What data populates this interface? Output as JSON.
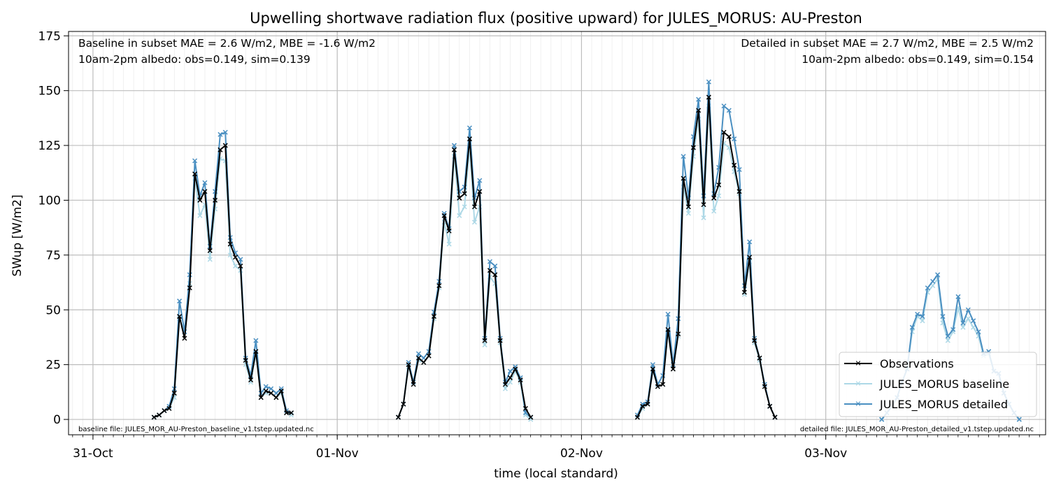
{
  "chart_data": {
    "type": "line",
    "title": "Upwelling shortwave radiation flux (positive upward) for JULES_MORUS: AU-Preston",
    "xlabel": "time (local standard)",
    "ylabel": "SWup [W/m2]",
    "ylim": [
      -7,
      177
    ],
    "yticks": [
      0,
      25,
      50,
      75,
      100,
      125,
      150,
      175
    ],
    "xlim": [
      -0.1,
      3.9
    ],
    "xticks": [
      {
        "pos": 0,
        "label": "31-Oct"
      },
      {
        "pos": 1,
        "label": "01-Nov"
      },
      {
        "pos": 2,
        "label": "02-Nov"
      },
      {
        "pos": 3,
        "label": "03-Nov"
      }
    ],
    "grid": true,
    "legend_position": "lower right",
    "annotations": {
      "top_left": [
        "Baseline in subset MAE = 2.6 W/m2, MBE = -1.6 W/m2",
        "10am-2pm albedo: obs=0.149, sim=0.139"
      ],
      "top_right": [
        "Detailed in subset MAE = 2.7 W/m2, MBE = 2.5 W/m2",
        "10am-2pm albedo: obs=0.149, sim=0.154"
      ],
      "bottom_left": "baseline file: JULES_MOR_AU-Preston_baseline_v1.tstep.updated.nc",
      "bottom_right": "detailed file: JULES_MOR_AU-Preston_detailed_v1.tstep.updated.nc"
    },
    "series": [
      {
        "name": "Observations",
        "color": "#000000",
        "segments": [
          {
            "x": [
              0.25,
              0.271,
              0.292,
              0.312,
              0.333,
              0.354,
              0.375,
              0.396,
              0.417,
              0.438,
              0.458,
              0.479,
              0.5,
              0.521,
              0.542,
              0.562,
              0.583,
              0.604,
              0.625,
              0.646,
              0.667,
              0.688,
              0.708,
              0.729,
              0.75,
              0.771,
              0.792,
              0.812
            ],
            "y": [
              1,
              2,
              4,
              5,
              12,
              47,
              37,
              60,
              112,
              100,
              104,
              77,
              100,
              123,
              125,
              80,
              74,
              70,
              27,
              18,
              31,
              10,
              13,
              12,
              10,
              13,
              3,
              3
            ]
          },
          {
            "x": [
              1.25,
              1.271,
              1.292,
              1.312,
              1.333,
              1.354,
              1.375,
              1.396,
              1.417,
              1.438,
              1.458,
              1.479,
              1.5,
              1.521,
              1.542,
              1.562,
              1.583,
              1.604,
              1.625,
              1.646,
              1.667,
              1.688,
              1.708,
              1.729,
              1.75,
              1.771,
              1.792
            ],
            "y": [
              1,
              7,
              25,
              16,
              28,
              26,
              29,
              47,
              61,
              93,
              86,
              123,
              101,
              103,
              128,
              97,
              104,
              36,
              68,
              66,
              36,
              16,
              19,
              23,
              18,
              5,
              1
            ]
          },
          {
            "x": [
              2.229,
              2.25,
              2.271,
              2.292,
              2.312,
              2.333,
              2.354,
              2.375,
              2.396,
              2.417,
              2.438,
              2.458,
              2.479,
              2.5,
              2.521,
              2.542,
              2.562,
              2.583,
              2.604,
              2.625,
              2.646,
              2.667,
              2.688,
              2.708,
              2.729,
              2.75,
              2.771,
              2.792
            ],
            "y": [
              1,
              6,
              7,
              23,
              15,
              16,
              41,
              23,
              39,
              110,
              97,
              124,
              141,
              98,
              147,
              101,
              107,
              131,
              129,
              116,
              104,
              58,
              74,
              36,
              28,
              15,
              6,
              1
            ]
          }
        ]
      },
      {
        "name": "JULES_MORUS baseline",
        "color": "#add8e6",
        "segments": [
          {
            "x": [
              0.25,
              0.271,
              0.292,
              0.312,
              0.333,
              0.354,
              0.375,
              0.396,
              0.417,
              0.438,
              0.458,
              0.479,
              0.5,
              0.521,
              0.542,
              0.562,
              0.583,
              0.604,
              0.625,
              0.646,
              0.667,
              0.688,
              0.708,
              0.729,
              0.75,
              0.771,
              0.792,
              0.812
            ],
            "y": [
              1,
              2,
              4,
              5,
              10,
              46,
              40,
              62,
              110,
              93,
              98,
              73,
              96,
              119,
              118,
              75,
              70,
              68,
              25,
              17,
              30,
              10,
              12,
              12,
              10,
              12,
              3,
              2
            ]
          },
          {
            "x": [
              1.25,
              1.271,
              1.292,
              1.312,
              1.333,
              1.354,
              1.375,
              1.396,
              1.417,
              1.438,
              1.458,
              1.479,
              1.5,
              1.521,
              1.542,
              1.562,
              1.583,
              1.604,
              1.625,
              1.646,
              1.667,
              1.688,
              1.708,
              1.729,
              1.75,
              1.771,
              1.792
            ],
            "y": [
              1,
              7,
              24,
              16,
              27,
              26,
              29,
              46,
              60,
              90,
              80,
              120,
              93,
              97,
              124,
              90,
              97,
              34,
              65,
              62,
              35,
              14,
              17,
              22,
              17,
              2,
              0
            ]
          },
          {
            "x": [
              2.229,
              2.25,
              2.271,
              2.292,
              2.312,
              2.333,
              2.354,
              2.375,
              2.396,
              2.417,
              2.438,
              2.458,
              2.479,
              2.5,
              2.521,
              2.542,
              2.562,
              2.583,
              2.604,
              2.625,
              2.646,
              2.667,
              2.688,
              2.708,
              2.729,
              2.75,
              2.771,
              2.792
            ],
            "y": [
              1,
              5,
              7,
              22,
              15,
              16,
              40,
              23,
              38,
              106,
              94,
              120,
              137,
              92,
              143,
              95,
              102,
              126,
              124,
              113,
              103,
              57,
              72,
              35,
              27,
              15,
              6,
              1
            ]
          },
          {
            "x": [
              3.229,
              3.25,
              3.271,
              3.292,
              3.312,
              3.333,
              3.354,
              3.375,
              3.396,
              3.417,
              3.438,
              3.458,
              3.479,
              3.5,
              3.521,
              3.542,
              3.562,
              3.583,
              3.604,
              3.625,
              3.646,
              3.667,
              3.688,
              3.708,
              3.729,
              3.75,
              3.771,
              3.792
            ],
            "y": [
              0,
              3,
              6,
              10,
              17,
              23,
              40,
              47,
              45,
              58,
              61,
              64,
              44,
              36,
              40,
              51,
              42,
              46,
              42,
              38,
              29,
              30,
              22,
              21,
              12,
              7,
              3,
              0
            ]
          }
        ]
      },
      {
        "name": "JULES_MORUS detailed",
        "color": "#4a8fc1",
        "segments": [
          {
            "x": [
              0.25,
              0.271,
              0.292,
              0.312,
              0.333,
              0.354,
              0.375,
              0.396,
              0.417,
              0.438,
              0.458,
              0.479,
              0.5,
              0.521,
              0.542,
              0.562,
              0.583,
              0.604,
              0.625,
              0.646,
              0.667,
              0.688,
              0.708,
              0.729,
              0.75,
              0.771,
              0.792,
              0.812
            ],
            "y": [
              1,
              2,
              4,
              6,
              14,
              54,
              40,
              66,
              118,
              102,
              108,
              79,
              104,
              130,
              131,
              83,
              76,
              73,
              28,
              20,
              36,
              12,
              15,
              14,
              12,
              14,
              4,
              3
            ]
          },
          {
            "x": [
              1.25,
              1.271,
              1.292,
              1.312,
              1.333,
              1.354,
              1.375,
              1.396,
              1.417,
              1.438,
              1.458,
              1.479,
              1.5,
              1.521,
              1.542,
              1.562,
              1.583,
              1.604,
              1.625,
              1.646,
              1.667,
              1.688,
              1.708,
              1.729,
              1.75,
              1.771,
              1.792
            ],
            "y": [
              1,
              7,
              26,
              17,
              30,
              28,
              31,
              49,
              63,
              94,
              87,
              125,
              104,
              106,
              133,
              101,
              109,
              37,
              72,
              70,
              37,
              17,
              22,
              24,
              19,
              3,
              1
            ]
          },
          {
            "x": [
              2.229,
              2.25,
              2.271,
              2.292,
              2.312,
              2.333,
              2.354,
              2.375,
              2.396,
              2.417,
              2.438,
              2.458,
              2.479,
              2.5,
              2.521,
              2.542,
              2.562,
              2.583,
              2.604,
              2.625,
              2.646,
              2.667,
              2.688,
              2.708,
              2.729,
              2.75,
              2.771,
              2.792
            ],
            "y": [
              2,
              7,
              8,
              25,
              16,
              20,
              48,
              25,
              46,
              120,
              101,
              129,
              146,
              102,
              154,
              103,
              115,
              143,
              141,
              128,
              114,
              61,
              81,
              37,
              28,
              16,
              6,
              1
            ]
          },
          {
            "x": [
              3.229,
              3.25,
              3.271,
              3.292,
              3.312,
              3.333,
              3.354,
              3.375,
              3.396,
              3.417,
              3.438,
              3.458,
              3.479,
              3.5,
              3.521,
              3.542,
              3.562,
              3.583,
              3.604,
              3.625,
              3.646,
              3.667,
              3.688,
              3.708,
              3.729,
              3.75,
              3.771,
              3.792
            ],
            "y": [
              0,
              3,
              6,
              10,
              17,
              23,
              42,
              48,
              47,
              60,
              63,
              66,
              47,
              38,
              41,
              56,
              44,
              50,
              45,
              40,
              30,
              31,
              22,
              21,
              12,
              7,
              3,
              0
            ]
          }
        ]
      }
    ]
  }
}
